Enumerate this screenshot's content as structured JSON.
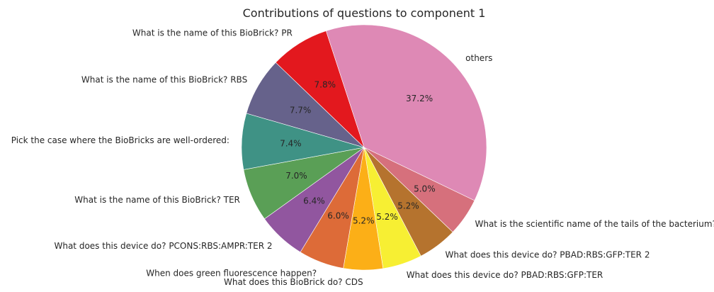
{
  "chart_data": {
    "type": "pie",
    "title": "Contributions of questions to component 1",
    "slices": [
      {
        "label": "others",
        "value": 37.2,
        "pct_label": "37.2%",
        "color": "#de89b5"
      },
      {
        "label": "What is the scientific name of the tails of the bacterium?",
        "value": 5.0,
        "pct_label": "5.0%",
        "color": "#d6707c"
      },
      {
        "label": "What does this device do? PBAD:RBS:GFP:TER 2",
        "value": 5.2,
        "pct_label": "5.2%",
        "color": "#b5732e"
      },
      {
        "label": "What does this device do? PBAD:RBS:GFP:TER",
        "value": 5.2,
        "pct_label": "5.2%",
        "color": "#f7ef33"
      },
      {
        "label": "What does this BioBrick do? CDS",
        "value": 5.2,
        "pct_label": "5.2%",
        "color": "#fcaf17"
      },
      {
        "label": "When does green fluorescence happen?",
        "value": 6.0,
        "pct_label": "6.0%",
        "color": "#dd6b38"
      },
      {
        "label": "What does this device do? PCONS:RBS:AMPR:TER 2",
        "value": 6.4,
        "pct_label": "6.4%",
        "color": "#91569f"
      },
      {
        "label": "What is the name of this BioBrick? TER",
        "value": 7.0,
        "pct_label": "7.0%",
        "color": "#5a9f56"
      },
      {
        "label": "Pick the case where the BioBricks are well-ordered:",
        "value": 7.4,
        "pct_label": "7.4%",
        "color": "#3f9285"
      },
      {
        "label": "What is the name of this BioBrick? RBS",
        "value": 7.7,
        "pct_label": "7.7%",
        "color": "#66628b"
      },
      {
        "label": "What is the name of this BioBrick? PR",
        "value": 7.8,
        "pct_label": "7.8%",
        "color": "#e3181e"
      }
    ]
  }
}
